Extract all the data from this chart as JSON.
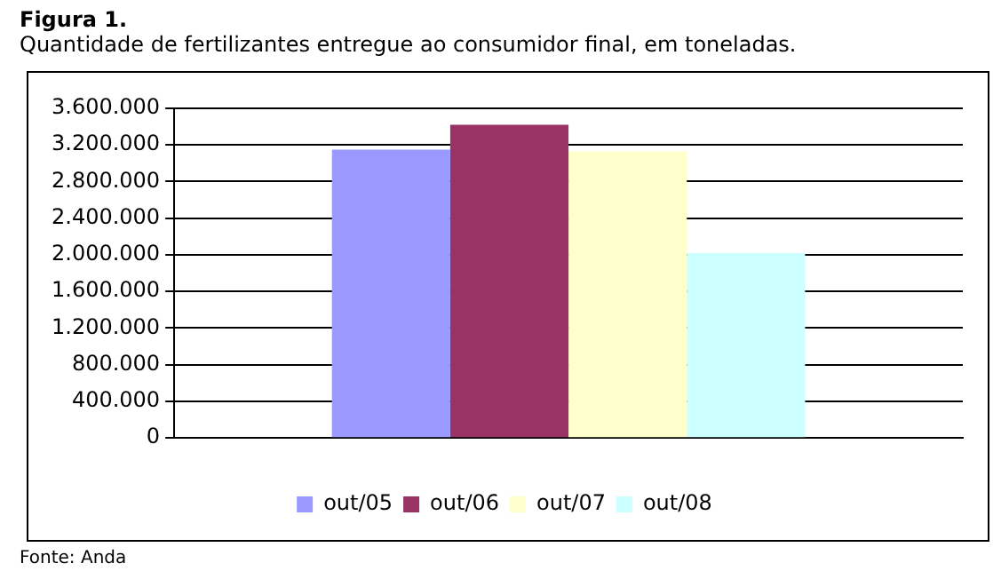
{
  "chart_data": {
    "type": "bar",
    "title": "Figura 1.",
    "subtitle": "Quantidade de fertilizantes entregue ao consumidor final, em toneladas.",
    "categories": [
      null
    ],
    "series": [
      {
        "name": "out/05",
        "color": "#9999ff",
        "values": [
          3150000
        ]
      },
      {
        "name": "out/06",
        "color": "#993366",
        "values": [
          3420000
        ]
      },
      {
        "name": "out/07",
        "color": "#ffffcc",
        "values": [
          3130000
        ]
      },
      {
        "name": "out/08",
        "color": "#ccffff",
        "values": [
          2020000
        ]
      }
    ],
    "ylim": [
      0,
      3600000
    ],
    "yticks": [
      0,
      {
        "value": 400000,
        "label": "400.000"
      },
      {
        "value": 800000,
        "label": "800.000"
      },
      {
        "value": 1200000,
        "label": "1.200.000"
      },
      {
        "value": 1600000,
        "label": "1.600.000"
      },
      {
        "value": 2000000,
        "label": "2.000.000"
      },
      {
        "value": 2400000,
        "label": "2.400.000"
      },
      {
        "value": 2800000,
        "label": "2.800.000"
      },
      {
        "value": 3200000,
        "label": "3.200.000"
      },
      {
        "value": 3600000,
        "label": "3.600.000"
      }
    ],
    "grid": "y",
    "legend": "bottom",
    "annotations": [
      "Fonte: Anda"
    ]
  }
}
